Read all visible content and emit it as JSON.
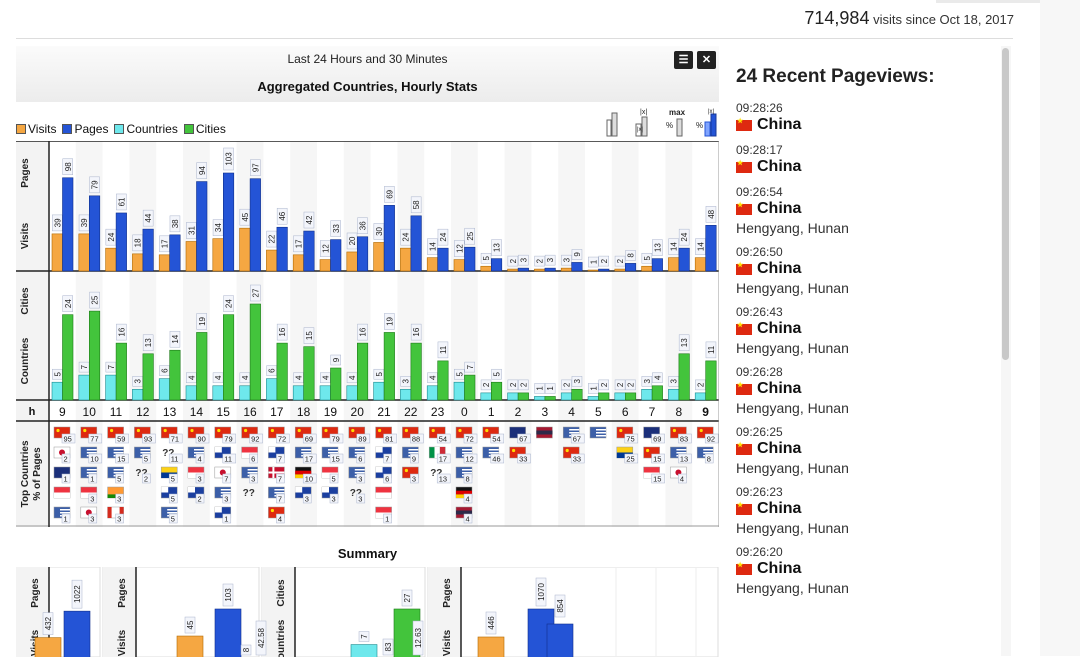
{
  "counter": {
    "count": "714,984",
    "suffix": "visits since Oct 18, 2017"
  },
  "panel": {
    "period": "Last 24 Hours and 30 Minutes",
    "title": "Aggregated Countries, Hourly Stats",
    "menu_icon": "menu-icon",
    "close_icon": "close-icon"
  },
  "legend": [
    {
      "label": "Visits",
      "color": "#f5a742"
    },
    {
      "label": "Pages",
      "color": "#2454d6"
    },
    {
      "label": "Countries",
      "color": "#6ee8ec"
    },
    {
      "label": "Cities",
      "color": "#43c43c"
    }
  ],
  "controls": {
    "abs_label": "|x|",
    "max_label": "max",
    "pct_label": "%"
  },
  "row_labels": {
    "visits": "Visits",
    "pages": "Pages",
    "countries": "Countries",
    "cities": "Cities",
    "hour": "h",
    "top_countries": "Top Countries",
    "top_sub": "% of Pages"
  },
  "chart_data": {
    "type": "bar",
    "title": "Aggregated Countries, Hourly Stats",
    "categories": [
      "9",
      "10",
      "11",
      "12",
      "13",
      "14",
      "15",
      "16",
      "17",
      "18",
      "19",
      "20",
      "21",
      "22",
      "23",
      "0",
      "1",
      "2",
      "3",
      "4",
      "5",
      "6",
      "7",
      "8",
      "9"
    ],
    "current_hour_index": 24,
    "series": [
      {
        "name": "Visits",
        "values": [
          39,
          39,
          24,
          18,
          17,
          31,
          34,
          45,
          22,
          17,
          12,
          20,
          30,
          24,
          14,
          12,
          5,
          2,
          2,
          3,
          1,
          2,
          5,
          14,
          14
        ]
      },
      {
        "name": "Pages",
        "values": [
          98,
          79,
          61,
          44,
          38,
          94,
          103,
          97,
          46,
          42,
          33,
          36,
          69,
          58,
          24,
          25,
          13,
          3,
          3,
          9,
          2,
          8,
          13,
          24,
          48
        ]
      },
      {
        "name": "Countries",
        "values": [
          5,
          7,
          7,
          3,
          6,
          4,
          4,
          4,
          6,
          4,
          4,
          4,
          5,
          3,
          4,
          5,
          2,
          2,
          1,
          2,
          1,
          2,
          3,
          3,
          2
        ]
      },
      {
        "name": "Cities",
        "values": [
          24,
          25,
          16,
          13,
          14,
          19,
          24,
          27,
          16,
          15,
          9,
          16,
          19,
          16,
          11,
          7,
          5,
          2,
          1,
          3,
          2,
          2,
          4,
          13,
          11
        ]
      }
    ],
    "top_countries": [
      [
        [
          "cn",
          95
        ],
        [
          "jp",
          2
        ],
        [
          "au",
          1
        ],
        [
          "sg",
          null
        ],
        [
          "us",
          1
        ]
      ],
      [
        [
          "cn",
          77
        ],
        [
          "us",
          10
        ],
        [
          "us",
          1
        ],
        [
          "sg",
          3
        ],
        [
          "kr",
          3
        ]
      ],
      [
        [
          "cn",
          59
        ],
        [
          "us",
          15
        ],
        [
          "us",
          5
        ],
        [
          "in",
          3
        ],
        [
          "ca",
          3
        ]
      ],
      [
        [
          "cn",
          93
        ],
        [
          "us",
          5
        ],
        [
          "unknown",
          2
        ],
        [
          "",
          null
        ],
        [
          "",
          null
        ]
      ],
      [
        [
          "cn",
          71
        ],
        [
          "unknown",
          11
        ],
        [
          "co",
          5
        ],
        [
          "tw",
          5
        ],
        [
          "us",
          5
        ]
      ],
      [
        [
          "cn",
          90
        ],
        [
          "us",
          4
        ],
        [
          "sg",
          3
        ],
        [
          "tw",
          2
        ],
        [
          "",
          null
        ]
      ],
      [
        [
          "cn",
          79
        ],
        [
          "tw",
          11
        ],
        [
          "kr",
          7
        ],
        [
          "us",
          3
        ],
        [
          "tw",
          1
        ]
      ],
      [
        [
          "cn",
          92
        ],
        [
          "sg",
          6
        ],
        [
          "us",
          3
        ],
        [
          "unknown",
          null
        ],
        [
          "",
          null
        ]
      ],
      [
        [
          "cn",
          72
        ],
        [
          "tw",
          7
        ],
        [
          "dk",
          7
        ],
        [
          "us",
          7
        ],
        [
          "hk",
          4
        ]
      ],
      [
        [
          "cn",
          69
        ],
        [
          "us",
          17
        ],
        [
          "de",
          10
        ],
        [
          "tw",
          3
        ],
        [
          "",
          null
        ]
      ],
      [
        [
          "cn",
          79
        ],
        [
          "us",
          15
        ],
        [
          "sg",
          5
        ],
        [
          "tw",
          3
        ],
        [
          "",
          null
        ]
      ],
      [
        [
          "cn",
          89
        ],
        [
          "us",
          6
        ],
        [
          "us",
          3
        ],
        [
          "unknown",
          3
        ],
        [
          "",
          null
        ]
      ],
      [
        [
          "cn",
          81
        ],
        [
          "tw",
          7
        ],
        [
          "tw",
          6
        ],
        [
          "sg",
          null
        ],
        [
          "sg",
          1
        ]
      ],
      [
        [
          "cn",
          88
        ],
        [
          "us",
          9
        ],
        [
          "hk",
          3
        ],
        [
          "",
          null
        ],
        [
          "",
          null
        ]
      ],
      [
        [
          "cn",
          54
        ],
        [
          "it",
          17
        ],
        [
          "unknown",
          13
        ],
        [
          "",
          null
        ],
        [
          "",
          null
        ]
      ],
      [
        [
          "cn",
          72
        ],
        [
          "us",
          12
        ],
        [
          "us",
          8
        ],
        [
          "de",
          4
        ],
        [
          "th",
          4
        ]
      ],
      [
        [
          "cn",
          54
        ],
        [
          "us",
          46
        ],
        [
          "",
          null
        ],
        [
          "",
          null
        ],
        [
          "",
          null
        ]
      ],
      [
        [
          "au",
          67
        ],
        [
          "cn",
          33
        ],
        [
          "",
          null
        ],
        [
          "",
          null
        ],
        [
          "",
          null
        ]
      ],
      [
        [
          "th",
          null
        ],
        [
          "",
          null
        ],
        [
          "",
          null
        ],
        [
          "",
          null
        ],
        [
          "",
          null
        ]
      ],
      [
        [
          "us",
          67
        ],
        [
          "cn",
          33
        ],
        [
          "",
          null
        ],
        [
          "",
          null
        ],
        [
          "",
          null
        ]
      ],
      [
        [
          "us",
          null
        ],
        [
          "",
          null
        ],
        [
          "",
          null
        ],
        [
          "",
          null
        ],
        [
          "",
          null
        ]
      ],
      [
        [
          "cn",
          75
        ],
        [
          "co",
          25
        ],
        [
          "",
          null
        ],
        [
          "",
          null
        ],
        [
          "",
          null
        ]
      ],
      [
        [
          "au",
          69
        ],
        [
          "cn",
          15
        ],
        [
          "sg",
          15
        ],
        [
          "",
          null
        ],
        [
          "",
          null
        ]
      ],
      [
        [
          "cn",
          83
        ],
        [
          "us",
          13
        ],
        [
          "jp",
          4
        ],
        [
          "",
          null
        ],
        [
          "",
          null
        ]
      ],
      [
        [
          "cn",
          92
        ],
        [
          "us",
          8
        ],
        [
          "",
          null
        ],
        [
          "",
          null
        ],
        [
          "",
          null
        ]
      ]
    ]
  },
  "summary": {
    "title": "Summary",
    "groups": [
      {
        "labels": [
          "Visits",
          "Pages"
        ],
        "values": [
          432,
          1022
        ]
      },
      {
        "labels": [
          "Visits",
          "Pages"
        ],
        "values": [
          45,
          103
        ]
      },
      {
        "labels": [
          "Countries",
          "Cities"
        ],
        "values": [
          7,
          27
        ]
      },
      {
        "labels": [
          "Visits",
          "Pages"
        ],
        "values": [
          446,
          1070
        ]
      }
    ],
    "extra_labels": [
      "8",
      "42.58",
      "83",
      "12.63",
      "854"
    ]
  },
  "recent": {
    "title": "24 Recent Pageviews:",
    "items": [
      {
        "time": "09:28:26",
        "country": "China",
        "location": ""
      },
      {
        "time": "09:28:17",
        "country": "China",
        "location": ""
      },
      {
        "time": "09:26:54",
        "country": "China",
        "location": "Hengyang, Hunan"
      },
      {
        "time": "09:26:50",
        "country": "China",
        "location": "Hengyang, Hunan"
      },
      {
        "time": "09:26:43",
        "country": "China",
        "location": "Hengyang, Hunan"
      },
      {
        "time": "09:26:28",
        "country": "China",
        "location": "Hengyang, Hunan"
      },
      {
        "time": "09:26:25",
        "country": "China",
        "location": "Hengyang, Hunan"
      },
      {
        "time": "09:26:23",
        "country": "China",
        "location": "Hengyang, Hunan"
      },
      {
        "time": "09:26:20",
        "country": "China",
        "location": "Hengyang, Hunan"
      }
    ]
  }
}
